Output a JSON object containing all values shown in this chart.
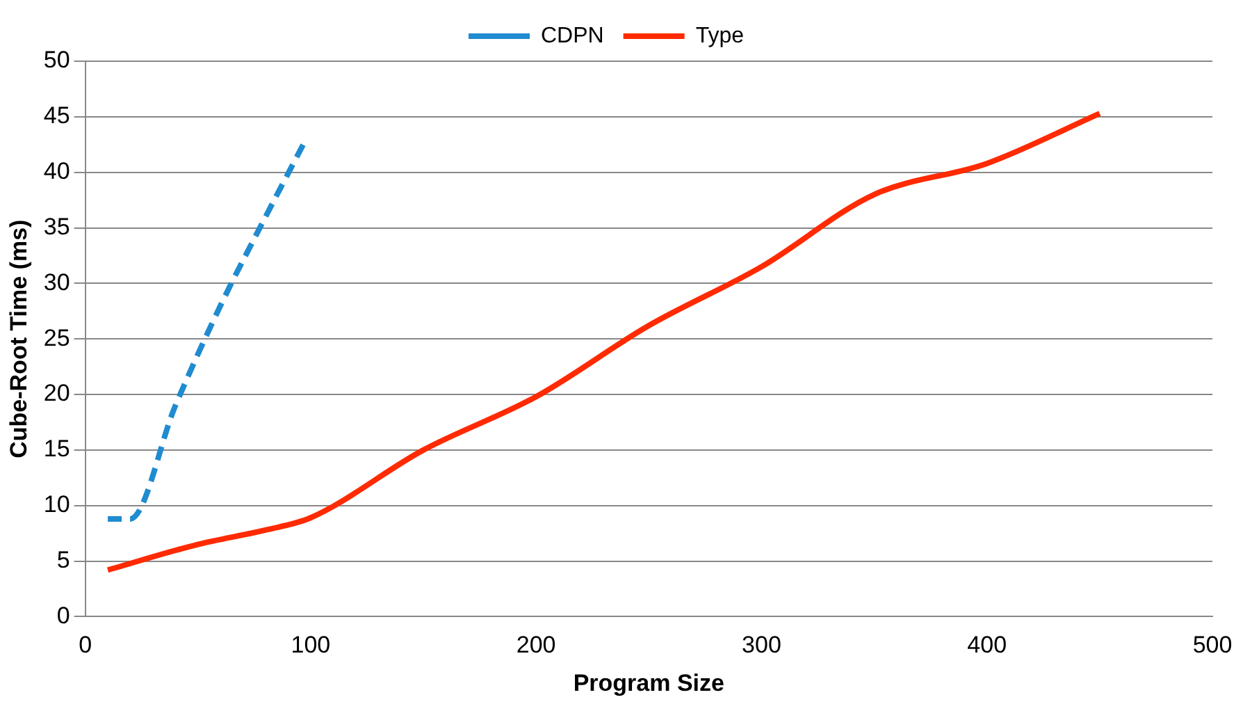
{
  "chart_data": {
    "type": "line",
    "xlabel": "Program Size",
    "ylabel": "Cube-Root Time (ms)",
    "xlim": [
      0,
      500
    ],
    "xticks": [
      0,
      100,
      200,
      300,
      400,
      500
    ],
    "ylim": [
      0,
      50
    ],
    "yticks": [
      0,
      5,
      10,
      15,
      20,
      25,
      30,
      35,
      40,
      45,
      50
    ],
    "grid": "y",
    "legend": "top",
    "marker": "none",
    "series": [
      {
        "name": "CDPN",
        "color": "#1f8bd0",
        "line_style": "dashed",
        "x": [
          10,
          20,
          40,
          60,
          80,
          98
        ],
        "values": [
          8.8,
          8.8,
          19,
          28,
          36,
          43
        ]
      },
      {
        "name": "Type",
        "color": "#ff2a00",
        "line_style": "solid",
        "x": [
          10,
          50,
          80,
          100,
          150,
          200,
          250,
          300,
          350,
          400,
          450
        ],
        "values": [
          4.2,
          6.5,
          7.8,
          8.9,
          15,
          19.8,
          26.2,
          31.5,
          38,
          40.8,
          45.3
        ]
      }
    ]
  }
}
